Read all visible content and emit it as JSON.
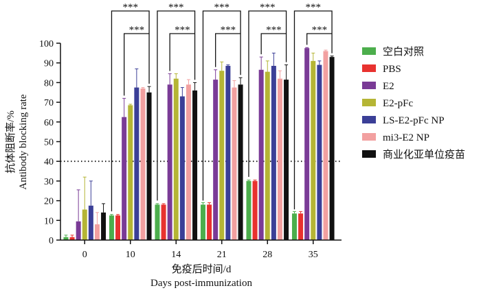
{
  "chart_data": {
    "type": "bar",
    "ylabel_cn": "抗体阻断率/%",
    "ylabel_en": "Antibody blocking rate",
    "xlabel_cn": "免疫后时间/d",
    "xlabel_en": "Days post-immunization",
    "ylim": [
      0,
      100
    ],
    "yticks": [
      0,
      10,
      20,
      30,
      40,
      50,
      60,
      70,
      80,
      90,
      100
    ],
    "categories": [
      "0",
      "10",
      "14",
      "21",
      "28",
      "35"
    ],
    "reference_line": 40,
    "significance_label": "***",
    "legend_position": "right",
    "series": [
      {
        "name": "空白对照",
        "color": "#4cae4c",
        "values": [
          1.5,
          12.5,
          18,
          18,
          30,
          13.5
        ],
        "errors": [
          1,
          0.5,
          0.5,
          1,
          0.5,
          1
        ]
      },
      {
        "name": "PBS",
        "color": "#e8322f",
        "values": [
          1.5,
          12.5,
          18,
          18,
          30,
          13.5
        ],
        "errors": [
          1,
          0.5,
          0.5,
          1,
          0.5,
          1
        ]
      },
      {
        "name": "E2",
        "color": "#7a3b96",
        "values": [
          9.5,
          62.5,
          79,
          81.5,
          86.5,
          97.5
        ],
        "errors": [
          16,
          9.5,
          5.5,
          5,
          6.5,
          0.3
        ]
      },
      {
        "name": "E2-pFc",
        "color": "#b5b535",
        "values": [
          15.5,
          68.5,
          82,
          86,
          85.5,
          91
        ],
        "errors": [
          16.5,
          0.5,
          2.5,
          4.5,
          5.5,
          4
        ]
      },
      {
        "name": "LS-E2-pFc NP",
        "color": "#3b3f97",
        "values": [
          17.5,
          77.5,
          73,
          88.5,
          88.5,
          89
        ],
        "errors": [
          12.5,
          9.5,
          4.5,
          0.5,
          6.5,
          2
        ]
      },
      {
        "name": "mi3-E2 NP",
        "color": "#f2a0a0",
        "values": [
          8,
          77,
          79,
          77.5,
          82,
          96
        ],
        "errors": [
          6,
          0.5,
          2.5,
          3.5,
          4,
          0.5
        ]
      },
      {
        "name": "商业化亚单位疫苗",
        "color": "#111111",
        "values": [
          14,
          75,
          76,
          79,
          81.5,
          93
        ],
        "errors": [
          4.5,
          3,
          4,
          3.5,
          7.5,
          0.5
        ]
      }
    ]
  }
}
